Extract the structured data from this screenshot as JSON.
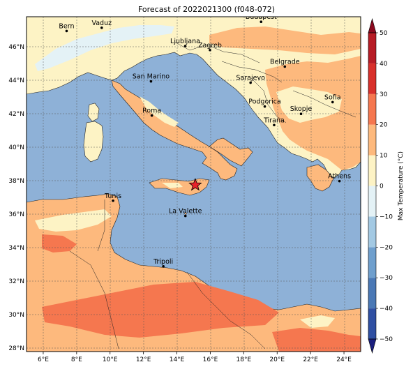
{
  "title": "Forecast of 2022021300 (f048-072)",
  "map": {
    "lon_range": [
      5,
      25
    ],
    "lat_range": [
      27.8,
      47.8
    ],
    "lon_ticks": [
      "6°E",
      "8°E",
      "10°E",
      "12°E",
      "14°E",
      "16°E",
      "18°E",
      "20°E",
      "22°E",
      "24°E"
    ],
    "lat_ticks": [
      "28°N",
      "30°N",
      "32°N",
      "34°N",
      "36°N",
      "38°N",
      "40°N",
      "42°N",
      "44°N",
      "46°N"
    ],
    "sea_color": "#8eb1d7",
    "grid": true
  },
  "cities": [
    {
      "name": "Bern",
      "lon": 7.4,
      "lat": 46.95
    },
    {
      "name": "Vaduz",
      "lon": 9.5,
      "lat": 47.14
    },
    {
      "name": "Budapest",
      "lon": 19.04,
      "lat": 47.5
    },
    {
      "name": "Ljubljana",
      "lon": 14.5,
      "lat": 46.05
    },
    {
      "name": "Zagreb",
      "lon": 15.98,
      "lat": 45.81
    },
    {
      "name": "Belgrade",
      "lon": 20.46,
      "lat": 44.82
    },
    {
      "name": "San Marino",
      "lon": 12.45,
      "lat": 43.94
    },
    {
      "name": "Sarajevo",
      "lon": 18.41,
      "lat": 43.86
    },
    {
      "name": "Sofia",
      "lon": 23.32,
      "lat": 42.7
    },
    {
      "name": "Podgorica",
      "lon": 19.26,
      "lat": 42.44
    },
    {
      "name": "Skopje",
      "lon": 21.43,
      "lat": 42.0
    },
    {
      "name": "Roma",
      "lon": 12.5,
      "lat": 41.9
    },
    {
      "name": "Tirana",
      "lon": 19.82,
      "lat": 41.33
    },
    {
      "name": "Athens",
      "lon": 23.73,
      "lat": 37.98
    },
    {
      "name": "Tunis",
      "lon": 10.18,
      "lat": 36.81
    },
    {
      "name": "La Valette",
      "lon": 14.51,
      "lat": 35.9
    },
    {
      "name": "Tripoli",
      "lon": 13.19,
      "lat": 32.89
    }
  ],
  "marker": {
    "type": "star",
    "lon": 15.1,
    "lat": 37.75,
    "color": "#e8222a"
  },
  "colorbar": {
    "label": "Max Temperature (°C)",
    "ticks": [
      "−50",
      "−40",
      "−30",
      "−20",
      "−10",
      "0",
      "10",
      "20",
      "30",
      "40",
      "50"
    ],
    "colors": [
      "#1a1f7e",
      "#2f4fa2",
      "#4a78b5",
      "#6f9fcd",
      "#a3c9e3",
      "#e4f2f6",
      "#fdf3c5",
      "#fdb97d",
      "#f5774f",
      "#d8302b",
      "#8b0a1f"
    ]
  }
}
